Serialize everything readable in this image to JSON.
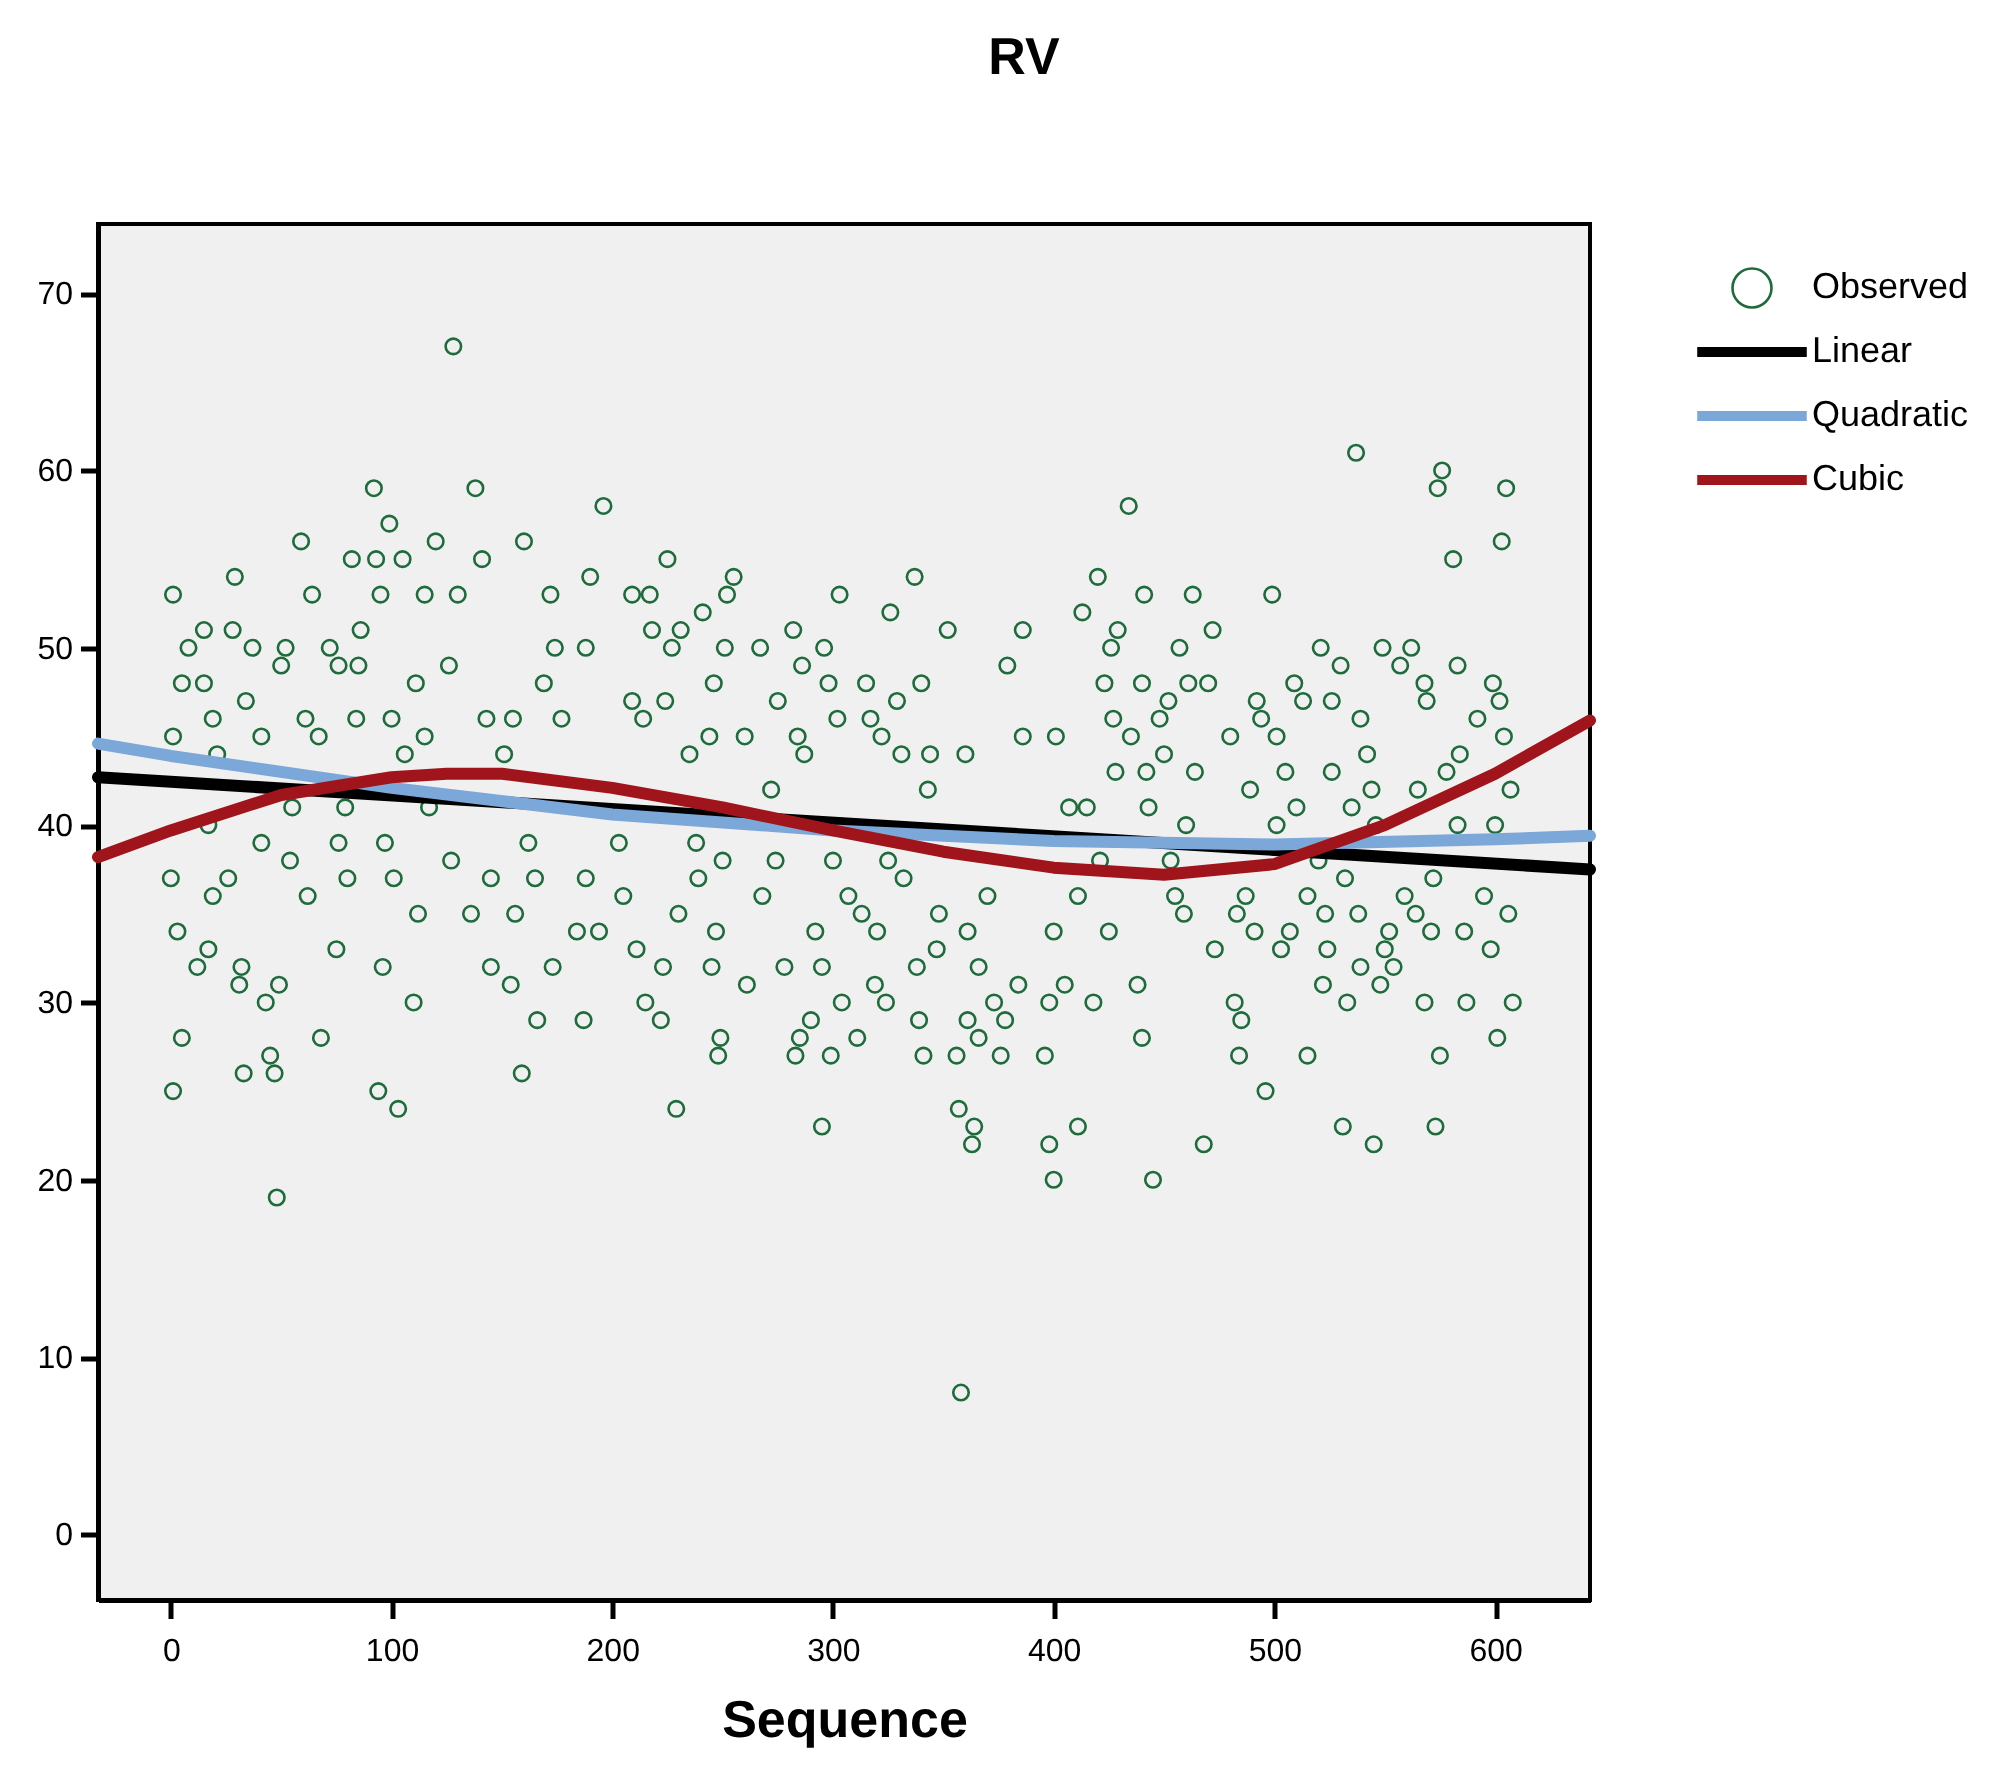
{
  "chart_data": {
    "type": "scatter",
    "title": "RV",
    "xlabel": "Sequence",
    "xlim": [
      -33,
      643
    ],
    "ylim": [
      -3.7,
      73.9
    ],
    "xticks": [
      0,
      100,
      200,
      300,
      400,
      500,
      600
    ],
    "yticks": [
      0,
      10,
      20,
      30,
      40,
      50,
      60,
      70
    ],
    "grid": false,
    "legend": "top right",
    "line_style": "solid",
    "series": [
      {
        "name": "Observed",
        "marker": "circle",
        "color": "#1e6b3c",
        "x": [
          128,
          92,
          138,
          196,
          99,
          59,
          120,
          1,
          29,
          82,
          93,
          105,
          141,
          160,
          190,
          95,
          64,
          115,
          130,
          172,
          15,
          28,
          8,
          37,
          52,
          86,
          72,
          174,
          188,
          5,
          15,
          50,
          76,
          85,
          111,
          126,
          169,
          34,
          19,
          61,
          84,
          100,
          143,
          155,
          177,
          1,
          41,
          67,
          115,
          21,
          106,
          151,
          55,
          79,
          117,
          17,
          41,
          76,
          97,
          162,
          0,
          26,
          54,
          80,
          101,
          127,
          145,
          165,
          188,
          19,
          62,
          112,
          136,
          156,
          3,
          184,
          17,
          75,
          12,
          32,
          96,
          145,
          173,
          31,
          154,
          43,
          49,
          110,
          166,
          187,
          5,
          68,
          33,
          47,
          159,
          45,
          1,
          94,
          103,
          48,
          225,
          255,
          209,
          217,
          252,
          303,
          337,
          326,
          241,
          218,
          231,
          282,
          352,
          386,
          413,
          227,
          251,
          267,
          296,
          379,
          286,
          246,
          298,
          315,
          340,
          209,
          224,
          275,
          329,
          214,
          302,
          317,
          244,
          260,
          284,
          322,
          386,
          401,
          235,
          287,
          331,
          344,
          360,
          272,
          343,
          407,
          203,
          238,
          250,
          274,
          300,
          325,
          239,
          332,
          205,
          268,
          307,
          370,
          230,
          313,
          348,
          194,
          247,
          292,
          320,
          361,
          400,
          211,
          347,
          223,
          245,
          278,
          295,
          338,
          366,
          261,
          319,
          384,
          405,
          215,
          304,
          324,
          373,
          398,
          222,
          290,
          339,
          361,
          378,
          249,
          285,
          311,
          366,
          248,
          283,
          299,
          341,
          356,
          376,
          396,
          229,
          357,
          295,
          364,
          411,
          363,
          398,
          400,
          358,
          537,
          576,
          574,
          605,
          603,
          434,
          581,
          420,
          441,
          463,
          499,
          429,
          472,
          426,
          457,
          521,
          549,
          562,
          530,
          557,
          583,
          423,
          440,
          461,
          470,
          509,
          568,
          599,
          452,
          492,
          513,
          526,
          569,
          602,
          427,
          448,
          494,
          539,
          592,
          435,
          480,
          501,
          604,
          450,
          542,
          584,
          428,
          442,
          464,
          505,
          526,
          578,
          489,
          544,
          565,
          607,
          415,
          443,
          510,
          535,
          460,
          501,
          546,
          583,
          600,
          453,
          421,
          520,
          532,
          572,
          411,
          455,
          487,
          515,
          559,
          595,
          459,
          483,
          523,
          538,
          564,
          606,
          425,
          491,
          507,
          552,
          571,
          586,
          473,
          503,
          524,
          550,
          598,
          539,
          554,
          438,
          522,
          548,
          418,
          482,
          533,
          568,
          587,
          608,
          440,
          485,
          601,
          484,
          515,
          575,
          496,
          531,
          573,
          468,
          545,
          445
        ],
        "values": [
          67,
          59,
          59,
          58,
          57,
          56,
          56,
          53,
          54,
          55,
          55,
          55,
          55,
          56,
          54,
          53,
          53,
          53,
          53,
          53,
          51,
          51,
          50,
          50,
          50,
          51,
          50,
          50,
          50,
          48,
          48,
          49,
          49,
          49,
          48,
          49,
          48,
          47,
          46,
          46,
          46,
          46,
          46,
          46,
          46,
          45,
          45,
          45,
          45,
          44,
          44,
          44,
          41,
          41,
          41,
          40,
          39,
          39,
          39,
          39,
          37,
          37,
          38,
          37,
          37,
          38,
          37,
          37,
          37,
          36,
          36,
          35,
          35,
          35,
          34,
          34,
          33,
          33,
          32,
          32,
          32,
          32,
          32,
          31,
          31,
          30,
          31,
          30,
          29,
          29,
          28,
          28,
          26,
          26,
          26,
          27,
          25,
          25,
          24,
          19,
          55,
          54,
          53,
          53,
          53,
          53,
          54,
          52,
          52,
          51,
          51,
          51,
          51,
          51,
          52,
          50,
          50,
          50,
          50,
          49,
          49,
          48,
          48,
          48,
          48,
          47,
          47,
          47,
          47,
          46,
          46,
          46,
          45,
          45,
          45,
          45,
          45,
          45,
          44,
          44,
          44,
          44,
          44,
          42,
          42,
          41,
          39,
          39,
          38,
          38,
          38,
          38,
          37,
          37,
          36,
          36,
          36,
          36,
          35,
          35,
          35,
          34,
          34,
          34,
          34,
          34,
          34,
          33,
          33,
          32,
          32,
          32,
          32,
          32,
          32,
          31,
          31,
          31,
          31,
          30,
          30,
          30,
          30,
          30,
          29,
          29,
          29,
          29,
          29,
          28,
          28,
          28,
          28,
          27,
          27,
          27,
          27,
          27,
          27,
          27,
          24,
          24,
          23,
          23,
          23,
          22,
          22,
          20,
          8,
          61,
          60,
          59,
          59,
          56,
          58,
          55,
          54,
          53,
          53,
          53,
          51,
          51,
          50,
          50,
          50,
          50,
          50,
          49,
          49,
          49,
          48,
          48,
          48,
          48,
          48,
          48,
          48,
          47,
          47,
          47,
          47,
          47,
          47,
          46,
          46,
          46,
          46,
          46,
          45,
          45,
          45,
          45,
          44,
          44,
          44,
          43,
          43,
          43,
          43,
          43,
          43,
          42,
          42,
          42,
          42,
          41,
          41,
          41,
          41,
          40,
          40,
          40,
          40,
          40,
          38,
          38,
          38,
          37,
          37,
          36,
          36,
          36,
          36,
          36,
          36,
          35,
          35,
          35,
          35,
          35,
          35,
          34,
          34,
          34,
          34,
          34,
          34,
          33,
          33,
          33,
          33,
          33,
          32,
          32,
          31,
          31,
          31,
          30,
          30,
          30,
          30,
          30,
          30,
          28,
          29,
          28,
          27,
          27,
          27,
          25,
          23,
          23,
          22,
          22,
          20
        ]
      },
      {
        "name": "Linear",
        "type": "line",
        "marker": "none",
        "color": "#000000",
        "x": [
          -33,
          643
        ],
        "values": [
          42.7,
          37.5
        ]
      },
      {
        "name": "Quadratic",
        "type": "line",
        "marker": "none",
        "color": "#7ba7d9",
        "x": [
          -33,
          0,
          100,
          200,
          300,
          400,
          500,
          600,
          643
        ],
        "values": [
          44.6,
          43.9,
          42.1,
          40.6,
          39.7,
          39.1,
          38.9,
          39.2,
          39.4
        ]
      },
      {
        "name": "Cubic",
        "type": "line",
        "marker": "none",
        "color": "#a0151c",
        "x": [
          -33,
          0,
          50,
          100,
          125,
          150,
          200,
          250,
          300,
          350,
          400,
          450,
          500,
          550,
          600,
          643
        ],
        "values": [
          38.2,
          39.7,
          41.7,
          42.7,
          42.9,
          42.9,
          42.1,
          41.0,
          39.7,
          38.5,
          37.6,
          37.2,
          37.8,
          40.0,
          42.9,
          45.9
        ]
      }
    ]
  }
}
